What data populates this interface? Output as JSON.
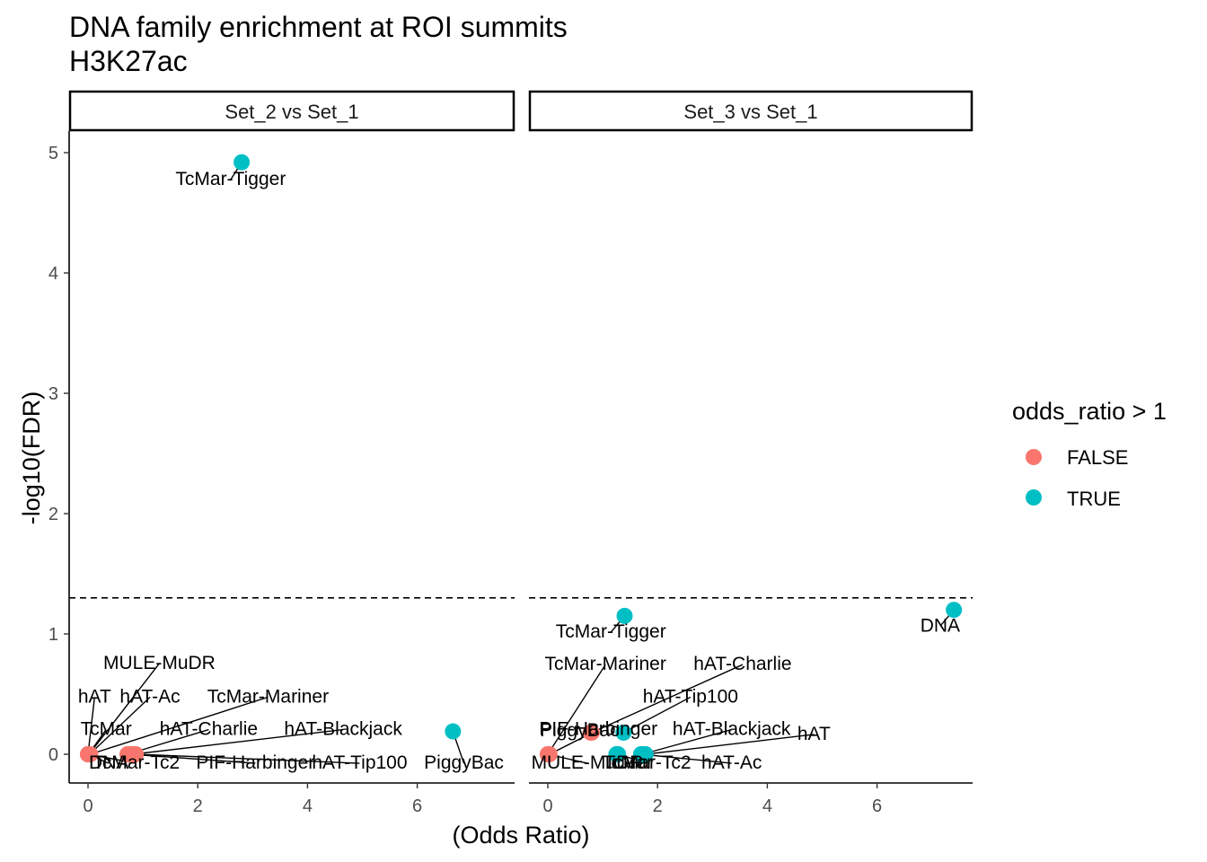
{
  "chart_data": {
    "type": "scatter",
    "title": "DNA family enrichment at ROI summits",
    "subtitle": "H3K27ac",
    "xlabel": "(Odds Ratio)",
    "ylabel": "-log10(FDR)",
    "xlim": [
      -0.35,
      7.6
    ],
    "ylim": [
      -0.22,
      5.2
    ],
    "x_ticks": [
      0,
      2,
      4,
      6
    ],
    "y_ticks": [
      0,
      1,
      2,
      3,
      4,
      5
    ],
    "threshold": 1.3,
    "legend": {
      "title": "odds_ratio > 1",
      "entries": [
        {
          "label": "FALSE",
          "color": "#F8766D"
        },
        {
          "label": "TRUE",
          "color": "#00BFC4"
        }
      ]
    },
    "facets": [
      {
        "name": "Set_2 vs Set_1",
        "points": [
          {
            "label": "TcMar-Tigger",
            "x": 2.8,
            "y": 4.92,
            "enriched": true,
            "lx": 2.6,
            "ly": 4.73
          },
          {
            "label": "PiggyBac",
            "x": 6.65,
            "y": 0.19,
            "enriched": true,
            "lx": 6.85,
            "ly": -0.12
          },
          {
            "label": "MULE-MuDR",
            "x": 0.02,
            "y": 0.0,
            "enriched": false,
            "lx": 1.3,
            "ly": 0.71
          },
          {
            "label": "hAT",
            "x": 0.0,
            "y": 0.0,
            "enriched": false,
            "lx": 0.12,
            "ly": 0.43
          },
          {
            "label": "hAT-Ac",
            "x": 0.03,
            "y": 0.0,
            "enriched": false,
            "lx": 1.13,
            "ly": 0.43
          },
          {
            "label": "TcMar-Mariner",
            "x": 0.04,
            "y": 0.0,
            "enriched": false,
            "lx": 3.28,
            "ly": 0.43
          },
          {
            "label": "TcMar",
            "x": 0.01,
            "y": 0.0,
            "enriched": false,
            "lx": 0.33,
            "ly": 0.16
          },
          {
            "label": "hAT-Charlie",
            "x": 0.72,
            "y": 0.0,
            "enriched": false,
            "lx": 2.2,
            "ly": 0.16
          },
          {
            "label": "hAT-Blackjack",
            "x": 0.82,
            "y": 0.0,
            "enriched": false,
            "lx": 4.65,
            "ly": 0.16
          },
          {
            "label": "TcMar-Tc2",
            "x": 0.0,
            "y": 0.0,
            "enriched": false,
            "lx": 0.88,
            "ly": -0.12
          },
          {
            "label": "DNA",
            "x": 0.0,
            "y": 0.0,
            "enriched": false,
            "lx": 0.38,
            "ly": -0.12
          },
          {
            "label": "PIF-Harbinger",
            "x": 0.77,
            "y": 0.0,
            "enriched": false,
            "lx": 3.05,
            "ly": -0.12
          },
          {
            "label": "hAT-Tip100",
            "x": 0.87,
            "y": 0.0,
            "enriched": false,
            "lx": 4.95,
            "ly": -0.12
          }
        ]
      },
      {
        "name": "Set_3 vs Set_1",
        "points": [
          {
            "label": "TcMar-Tigger",
            "x": 1.4,
            "y": 1.15,
            "enriched": true,
            "lx": 1.15,
            "ly": 0.97
          },
          {
            "label": "DNA",
            "x": 7.4,
            "y": 1.2,
            "enriched": true,
            "lx": 7.15,
            "ly": 1.02
          },
          {
            "label": "TcMar-Mariner",
            "x": 0.0,
            "y": 0.0,
            "enriched": false,
            "lx": 1.05,
            "ly": 0.7
          },
          {
            "label": "hAT-Charlie",
            "x": 0.8,
            "y": 0.18,
            "enriched": false,
            "lx": 3.55,
            "ly": 0.7
          },
          {
            "label": "hAT-Tip100",
            "x": 1.38,
            "y": 0.18,
            "enriched": true,
            "lx": 2.6,
            "ly": 0.43
          },
          {
            "label": "PIF-Harbinger",
            "x": 0.03,
            "y": 0.0,
            "enriched": false,
            "lx": 0.92,
            "ly": 0.16
          },
          {
            "label": "PiggyBac",
            "x": 0.78,
            "y": 0.18,
            "enriched": false,
            "lx": 0.58,
            "ly": 0.15
          },
          {
            "label": "hAT-Blackjack",
            "x": 1.72,
            "y": 0.0,
            "enriched": true,
            "lx": 3.35,
            "ly": 0.16
          },
          {
            "label": "hAT",
            "x": 1.78,
            "y": 0.0,
            "enriched": true,
            "lx": 4.85,
            "ly": 0.12
          },
          {
            "label": "MULE-MuDR",
            "x": 0.0,
            "y": 0.0,
            "enriched": false,
            "lx": 0.72,
            "ly": -0.12
          },
          {
            "label": "TcMar-Tc2",
            "x": 1.28,
            "y": 0.0,
            "enriched": true,
            "lx": 1.82,
            "ly": -0.12
          },
          {
            "label": "TcMar",
            "x": 1.25,
            "y": 0.0,
            "enriched": true,
            "lx": 1.45,
            "ly": -0.12
          },
          {
            "label": "hAT-Ac",
            "x": 1.7,
            "y": 0.0,
            "enriched": true,
            "lx": 3.35,
            "ly": -0.12
          }
        ]
      }
    ]
  }
}
